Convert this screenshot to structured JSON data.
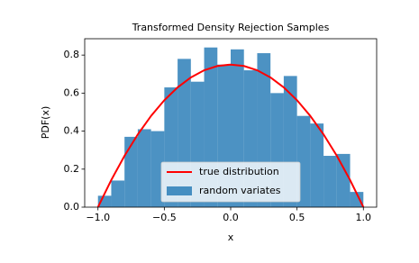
{
  "chart_data": {
    "type": "histogram",
    "title": "Transformed Density Rejection Samples",
    "xlabel": "x",
    "ylabel": "PDF(x)",
    "xlim": [
      -1.1,
      1.1
    ],
    "ylim": [
      0,
      0.886
    ],
    "xticks": [
      {
        "value": -1,
        "label": "−1.0"
      },
      {
        "value": -0.5,
        "label": "−0.5"
      },
      {
        "value": 0,
        "label": "0.0"
      },
      0.5,
      {
        "value": 1,
        "label": "1.0"
      }
    ],
    "yticks": [
      {
        "value": 0,
        "label": "0.0"
      },
      0.2,
      0.4,
      0.6,
      0.8
    ],
    "legend": "lower center",
    "series": [
      {
        "name": "true distribution",
        "type": "line",
        "color": "#ff0000",
        "x": [
          -1.0,
          -0.9,
          -0.8,
          -0.7,
          -0.6,
          -0.5,
          -0.4,
          -0.3,
          -0.2,
          -0.1,
          0.0,
          0.1,
          0.2,
          0.3,
          0.4,
          0.5,
          0.6,
          0.7,
          0.8,
          0.9,
          1.0
        ],
        "values": [
          0,
          0.1425,
          0.27,
          0.3825,
          0.48,
          0.5625,
          0.63,
          0.6825,
          0.72,
          0.7425,
          0.75,
          0.7425,
          0.72,
          0.6825,
          0.63,
          0.5625,
          0.48,
          0.3825,
          0.27,
          0.1425,
          0
        ]
      },
      {
        "name": "random variates",
        "type": "histogram",
        "color": "#1f77b4",
        "bins": [
          -1.0,
          -0.9,
          -0.8,
          -0.7,
          -0.6,
          -0.5,
          -0.4,
          -0.3,
          -0.2,
          -0.1,
          0.0,
          0.1,
          0.2,
          0.3,
          0.4,
          0.5,
          0.6,
          0.7,
          0.8,
          0.9,
          1.0
        ],
        "values": [
          0.06,
          0.14,
          0.37,
          0.41,
          0.4,
          0.63,
          0.78,
          0.66,
          0.84,
          0.75,
          0.83,
          0.72,
          0.81,
          0.6,
          0.69,
          0.48,
          0.44,
          0.27,
          0.28,
          0.08
        ]
      }
    ]
  }
}
